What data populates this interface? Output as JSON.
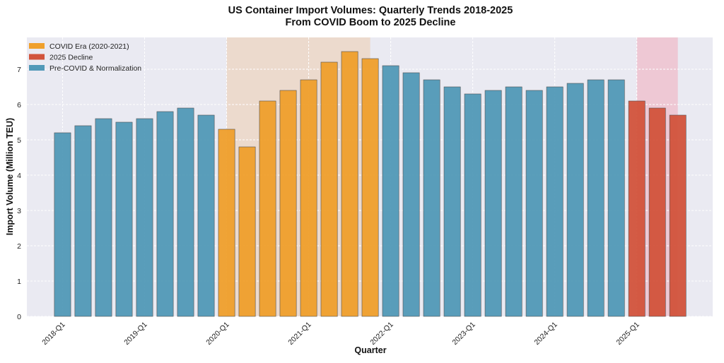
{
  "chart_data": {
    "type": "bar",
    "title": "US Container Import Volumes: Quarterly Trends 2018-2025",
    "subtitle": "From COVID Boom to 2025 Decline",
    "xlabel": "Quarter",
    "ylabel": "Import Volume (Million TEU)",
    "ylim": [
      0,
      7.9
    ],
    "yticks": [
      0,
      1,
      2,
      3,
      4,
      5,
      6,
      7
    ],
    "grid": true,
    "legend_position": "top-left",
    "categories": [
      "2018-Q1",
      "2018-Q2",
      "2018-Q3",
      "2018-Q4",
      "2019-Q1",
      "2019-Q2",
      "2019-Q3",
      "2019-Q4",
      "2020-Q1",
      "2020-Q2",
      "2020-Q3",
      "2020-Q4",
      "2021-Q1",
      "2021-Q2",
      "2021-Q3",
      "2021-Q4",
      "2022-Q1",
      "2022-Q2",
      "2022-Q3",
      "2022-Q4",
      "2023-Q1",
      "2023-Q2",
      "2023-Q3",
      "2023-Q4",
      "2024-Q1",
      "2024-Q2",
      "2024-Q3",
      "2024-Q4",
      "2025-Q1",
      "2025-Q2",
      "2025-Q3"
    ],
    "xtick_labels": [
      "2018-Q1",
      "2019-Q1",
      "2020-Q1",
      "2021-Q1",
      "2022-Q1",
      "2023-Q1",
      "2024-Q1",
      "2025-Q1"
    ],
    "values": [
      5.2,
      5.4,
      5.6,
      5.5,
      5.6,
      5.8,
      5.9,
      5.7,
      5.3,
      4.8,
      6.1,
      6.4,
      6.7,
      7.2,
      7.5,
      7.3,
      7.1,
      6.9,
      6.7,
      6.5,
      6.3,
      6.4,
      6.5,
      6.4,
      6.5,
      6.6,
      6.7,
      6.7,
      6.1,
      5.9,
      5.7
    ],
    "groups": [
      "pre",
      "pre",
      "pre",
      "pre",
      "pre",
      "pre",
      "pre",
      "pre",
      "covid",
      "covid",
      "covid",
      "covid",
      "covid",
      "covid",
      "covid",
      "covid",
      "pre",
      "pre",
      "pre",
      "pre",
      "pre",
      "pre",
      "pre",
      "pre",
      "pre",
      "pre",
      "pre",
      "pre",
      "decline",
      "decline",
      "decline"
    ],
    "legend": [
      {
        "key": "covid",
        "label": "COVID Era (2020-2021)",
        "color": "#f0a02c"
      },
      {
        "key": "decline",
        "label": "2025 Decline",
        "color": "#d2543c"
      },
      {
        "key": "pre",
        "label": "Pre-COVID & Normalization",
        "color": "#5299b8"
      }
    ],
    "shaded_regions": [
      {
        "from": "2020-Q1",
        "to": "2021-Q4",
        "color": "#f0c8a0"
      },
      {
        "from": "2025-Q1",
        "to": "2025-Q3",
        "color": "#f4a0b0"
      }
    ],
    "background_color": "#eaeaf2"
  }
}
